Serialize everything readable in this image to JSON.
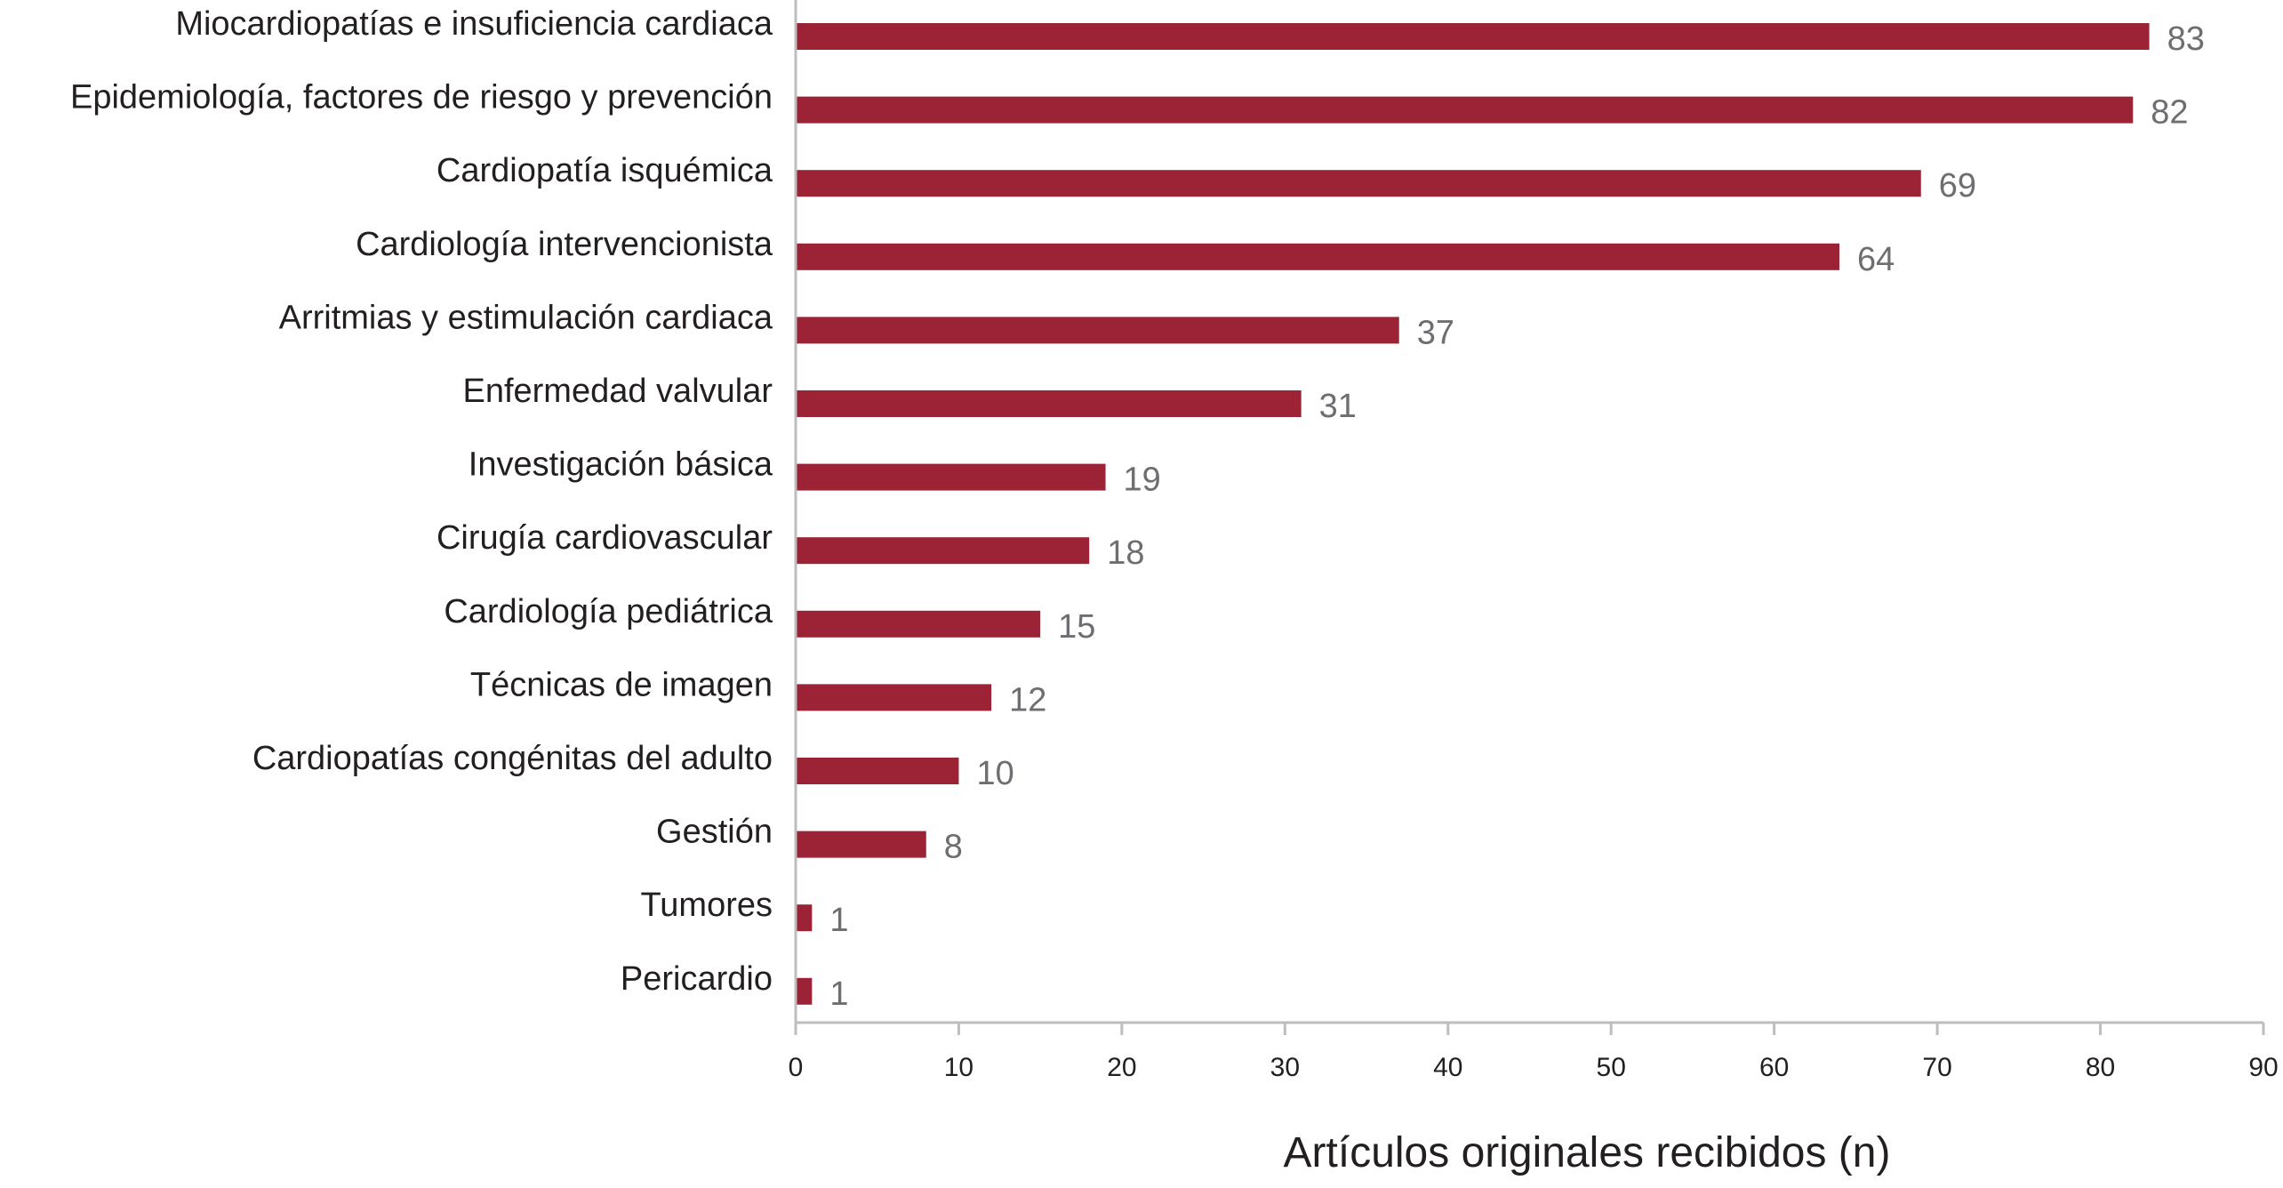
{
  "chart_data": {
    "type": "bar",
    "orientation": "horizontal",
    "categories": [
      "Miocardiopatías e insuficiencia cardiaca",
      "Epidemiología, factores de riesgo y prevención",
      "Cardiopatía isquémica",
      "Cardiología intervencionista",
      "Arritmias y estimulación cardiaca",
      "Enfermedad valvular",
      "Investigación básica",
      "Cirugía cardiovascular",
      "Cardiología pediátrica",
      "Técnicas de imagen",
      "Cardiopatías congénitas del adulto",
      "Gestión",
      "Tumores",
      "Pericardio"
    ],
    "values": [
      83,
      82,
      69,
      64,
      37,
      31,
      19,
      18,
      15,
      12,
      10,
      8,
      1,
      1
    ],
    "title": "",
    "xlabel": "Artículos originales recibidos (n)",
    "ylabel": "",
    "xlim": [
      0,
      90
    ],
    "xticks": [
      "0",
      "10",
      "20",
      "30",
      "40",
      "50",
      "60",
      "70",
      "80",
      "90"
    ],
    "grid": false,
    "legend": "none",
    "data_labels": true,
    "colors": {
      "bar": "#9b2335",
      "axis": "#bcbec0",
      "category_text": "#231f20",
      "value_text": "#6d6e71"
    }
  }
}
